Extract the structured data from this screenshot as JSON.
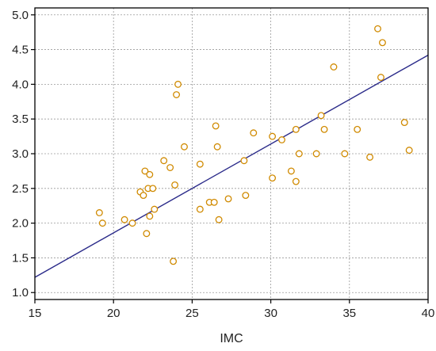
{
  "chart_data": {
    "type": "scatter",
    "title": "",
    "xlabel": "IMC",
    "ylabel": "",
    "xlim": [
      15,
      40
    ],
    "ylim": [
      0.9,
      5.1
    ],
    "xticks": [
      15,
      20,
      25,
      30,
      35,
      40
    ],
    "yticks": [
      1.0,
      1.5,
      2.0,
      2.5,
      3.0,
      3.5,
      4.0,
      4.5,
      5.0
    ],
    "xtick_labels": [
      "15",
      "20",
      "25",
      "30",
      "35",
      "40"
    ],
    "ytick_labels": [
      "1.0",
      "1.5",
      "2.0",
      "2.5",
      "3.0",
      "3.5",
      "4.0",
      "4.5",
      "5.0"
    ],
    "grid": true,
    "point_color": "#d08a00",
    "line_color": "#2b2b8a",
    "points": [
      [
        19.1,
        2.15
      ],
      [
        19.3,
        2.0
      ],
      [
        20.7,
        2.05
      ],
      [
        21.2,
        2.0
      ],
      [
        21.7,
        2.45
      ],
      [
        21.9,
        2.4
      ],
      [
        22.0,
        2.75
      ],
      [
        22.1,
        1.85
      ],
      [
        22.2,
        2.5
      ],
      [
        22.3,
        2.7
      ],
      [
        22.3,
        2.1
      ],
      [
        22.5,
        2.5
      ],
      [
        22.6,
        2.2
      ],
      [
        23.2,
        2.9
      ],
      [
        23.6,
        2.8
      ],
      [
        23.8,
        1.45
      ],
      [
        23.9,
        2.55
      ],
      [
        24.0,
        3.85
      ],
      [
        24.1,
        4.0
      ],
      [
        24.5,
        3.1
      ],
      [
        25.5,
        2.2
      ],
      [
        25.5,
        2.85
      ],
      [
        26.1,
        2.3
      ],
      [
        26.4,
        2.3
      ],
      [
        26.5,
        3.4
      ],
      [
        26.6,
        3.1
      ],
      [
        26.7,
        2.05
      ],
      [
        27.3,
        2.35
      ],
      [
        28.3,
        2.9
      ],
      [
        28.4,
        2.4
      ],
      [
        28.9,
        3.3
      ],
      [
        30.1,
        3.25
      ],
      [
        30.1,
        2.65
      ],
      [
        30.7,
        3.2
      ],
      [
        31.3,
        2.75
      ],
      [
        31.6,
        3.35
      ],
      [
        31.6,
        2.6
      ],
      [
        31.8,
        3.0
      ],
      [
        32.9,
        3.0
      ],
      [
        33.2,
        3.55
      ],
      [
        33.4,
        3.35
      ],
      [
        34.0,
        4.25
      ],
      [
        34.7,
        3.0
      ],
      [
        35.5,
        3.35
      ],
      [
        36.3,
        2.95
      ],
      [
        36.8,
        4.8
      ],
      [
        37.0,
        4.1
      ],
      [
        37.1,
        4.6
      ],
      [
        38.5,
        3.45
      ],
      [
        38.8,
        3.05
      ]
    ],
    "regression_line": {
      "x": [
        15,
        40
      ],
      "y": [
        1.22,
        4.42
      ]
    }
  }
}
